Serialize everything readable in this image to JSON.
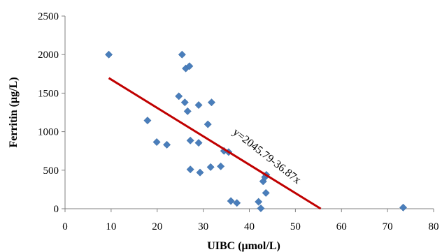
{
  "chart_data": {
    "type": "scatter",
    "xlabel": "UIBC (μmol/L)",
    "ylabel": "Ferritin (μg/L)",
    "xlim": [
      0,
      80
    ],
    "ylim": [
      0,
      2500
    ],
    "x_ticks": [
      0,
      10,
      20,
      30,
      40,
      50,
      60,
      70,
      80
    ],
    "y_ticks": [
      0,
      500,
      1000,
      1500,
      2000,
      2500
    ],
    "grid": false,
    "point_color": "#4a7ebb",
    "trendline_color": "#c00000",
    "points": [
      {
        "x": 9.5,
        "y": 2000
      },
      {
        "x": 17.9,
        "y": 1145
      },
      {
        "x": 19.9,
        "y": 865
      },
      {
        "x": 22.1,
        "y": 830
      },
      {
        "x": 24.7,
        "y": 1460
      },
      {
        "x": 25.4,
        "y": 2000
      },
      {
        "x": 26.0,
        "y": 1380
      },
      {
        "x": 26.2,
        "y": 1820
      },
      {
        "x": 26.6,
        "y": 1265
      },
      {
        "x": 27.0,
        "y": 1850
      },
      {
        "x": 27.2,
        "y": 885
      },
      {
        "x": 27.2,
        "y": 510
      },
      {
        "x": 29.0,
        "y": 1345
      },
      {
        "x": 29.0,
        "y": 855
      },
      {
        "x": 29.3,
        "y": 470
      },
      {
        "x": 31.0,
        "y": 1095
      },
      {
        "x": 31.6,
        "y": 540
      },
      {
        "x": 31.8,
        "y": 1380
      },
      {
        "x": 33.8,
        "y": 550
      },
      {
        "x": 34.5,
        "y": 750
      },
      {
        "x": 35.5,
        "y": 735
      },
      {
        "x": 36.0,
        "y": 100
      },
      {
        "x": 37.3,
        "y": 75
      },
      {
        "x": 42.0,
        "y": 90
      },
      {
        "x": 42.5,
        "y": 5
      },
      {
        "x": 43.0,
        "y": 355
      },
      {
        "x": 43.4,
        "y": 410
      },
      {
        "x": 43.7,
        "y": 440
      },
      {
        "x": 43.6,
        "y": 205
      },
      {
        "x": 73.4,
        "y": 15
      }
    ],
    "trendline": {
      "intercept": 2045.79,
      "slope": -36.87,
      "x_start": 9.5,
      "x_end": 55.5,
      "equation_label": "y=2045.79-36.87x"
    }
  }
}
